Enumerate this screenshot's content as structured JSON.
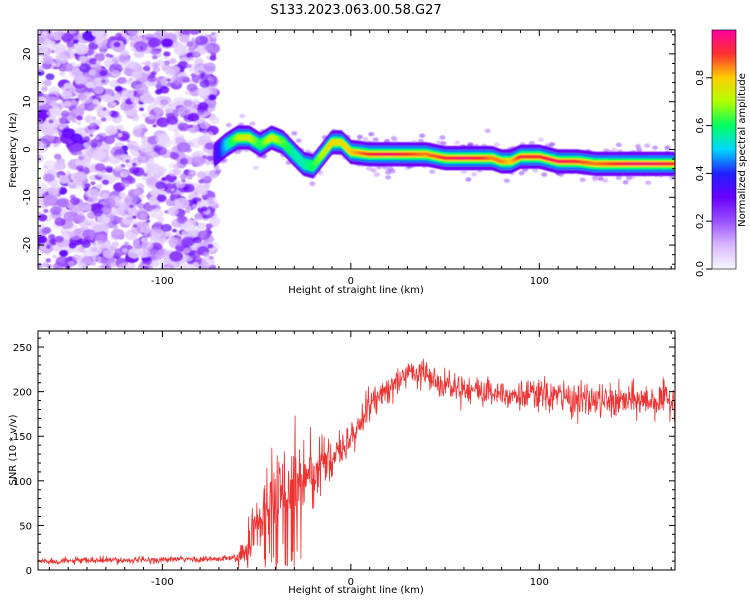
{
  "title": "S133.2023.063.00.58.G27",
  "colors": {
    "snr_line": "#ee3333",
    "colormap": [
      "#f7f7ff",
      "#d9b7ff",
      "#9a50ff",
      "#6a00ff",
      "#2020ff",
      "#00d8ff",
      "#00ff60",
      "#b0ff00",
      "#ffd000",
      "#ff3030",
      "#ff00a0"
    ]
  },
  "chart_data": [
    {
      "type": "heatmap",
      "xlabel": "Height of straight line (km)",
      "ylabel": "Frequency (Hz)",
      "xlim": [
        -166,
        172
      ],
      "ylim": [
        -25,
        25
      ],
      "xticks": [
        -100,
        0,
        100
      ],
      "yticks": [
        -20,
        -10,
        0,
        10,
        20
      ],
      "colorbar": {
        "label": "Normalized spectral amplitude",
        "range": [
          0,
          1
        ],
        "ticks": [
          0.0,
          0.2,
          0.4,
          0.6,
          0.8
        ]
      },
      "noise_region": {
        "x": [
          -166,
          -72
        ],
        "amplitude_range": [
          0.05,
          0.25
        ]
      },
      "ridge": {
        "x": [
          -72,
          -66,
          -60,
          -54,
          -48,
          -42,
          -36,
          -30,
          -25,
          -20,
          -15,
          -10,
          -5,
          0,
          10,
          20,
          30,
          40,
          50,
          60,
          70,
          75,
          80,
          85,
          90,
          95,
          100,
          110,
          120,
          130,
          140,
          150,
          160,
          172
        ],
        "freq": [
          -1,
          1,
          2.5,
          2.5,
          1,
          2.5,
          1.5,
          -1,
          -3,
          -3.5,
          -1,
          1.5,
          1.5,
          -0.5,
          -1,
          -1,
          -1,
          -1,
          -1.8,
          -1.8,
          -1.8,
          -1.8,
          -2.5,
          -2.5,
          -1.5,
          -1.5,
          -1.5,
          -2.5,
          -2.5,
          -3,
          -3,
          -3,
          -3,
          -3
        ],
        "amp": [
          0.3,
          0.5,
          0.7,
          0.75,
          0.6,
          0.75,
          0.65,
          0.55,
          0.55,
          0.6,
          0.7,
          0.8,
          0.75,
          0.8,
          0.9,
          0.95,
          0.9,
          0.85,
          0.9,
          0.95,
          0.9,
          0.85,
          0.85,
          0.8,
          0.9,
          0.9,
          0.9,
          0.95,
          0.9,
          0.85,
          0.9,
          0.95,
          0.95,
          0.9
        ]
      }
    },
    {
      "type": "line",
      "xlabel": "Height of straight line (km)",
      "ylabel": "SNR (10 * v/v)",
      "xlim": [
        -166,
        172
      ],
      "ylim": [
        0,
        268
      ],
      "xticks": [
        -100,
        0,
        100
      ],
      "yticks": [
        0,
        50,
        100,
        150,
        200,
        250
      ],
      "series": [
        {
          "x": [
            -166,
            -150,
            -130,
            -110,
            -90,
            -70,
            -60,
            -55,
            -50,
            -45,
            -40,
            -35,
            -30,
            -25,
            -20,
            -15,
            -10,
            -5,
            0,
            5,
            10,
            15,
            20,
            25,
            30,
            35,
            40,
            50,
            60,
            70,
            80,
            90,
            100,
            110,
            120,
            130,
            140,
            150,
            160,
            172
          ],
          "y": [
            10,
            10,
            11,
            11,
            12,
            12,
            14,
            25,
            50,
            70,
            85,
            95,
            95,
            100,
            115,
            120,
            125,
            135,
            145,
            170,
            185,
            195,
            205,
            212,
            218,
            222,
            220,
            210,
            205,
            200,
            200,
            195,
            195,
            195,
            190,
            190,
            188,
            190,
            190,
            190
          ],
          "noise": [
            3,
            3,
            3,
            3,
            3,
            3,
            5,
            20,
            25,
            35,
            40,
            45,
            50,
            40,
            30,
            25,
            25,
            20,
            18,
            15,
            14,
            14,
            14,
            14,
            14,
            14,
            14,
            14,
            14,
            14,
            14,
            14,
            16,
            16,
            16,
            16,
            16,
            16,
            16,
            16
          ]
        }
      ]
    }
  ]
}
